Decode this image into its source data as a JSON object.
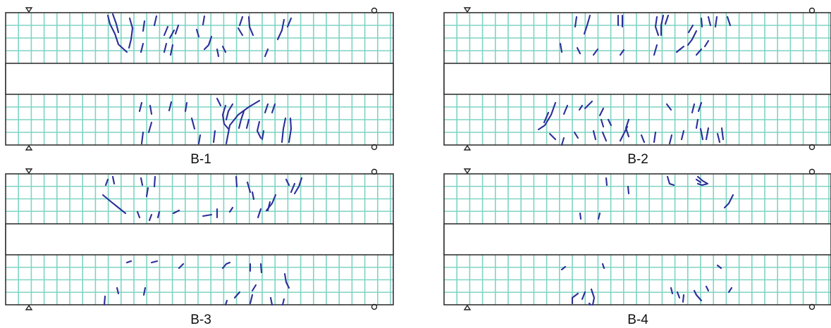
{
  "colors": {
    "grid": "#7fd4c3",
    "crack": "#2b2e9a",
    "outline": "#333333",
    "background": "#ffffff"
  },
  "symbols": {
    "left_support": "triangle-support-icon",
    "right_support": "roller-circle-icon"
  },
  "panels": [
    {
      "label": "B-1"
    },
    {
      "label": "B-2"
    },
    {
      "label": "B-3"
    },
    {
      "label": "B-4"
    }
  ]
}
